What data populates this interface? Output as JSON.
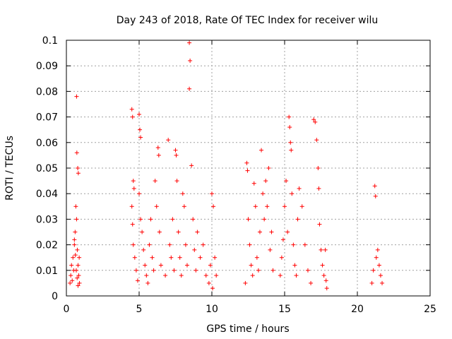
{
  "chart_data": {
    "type": "scatter",
    "title": "Day 243 of 2018, Rate Of TEC Index for receiver wilu",
    "xlabel": "GPS time / hours",
    "ylabel": "ROTI / TECUs",
    "xlim": [
      0,
      25
    ],
    "ylim": [
      0,
      0.1
    ],
    "x_ticks": [
      0,
      5,
      10,
      15,
      20,
      25
    ],
    "x_tick_labels": [
      "0",
      "5",
      "10",
      "15",
      "20",
      "25"
    ],
    "y_ticks": [
      0,
      0.01,
      0.02,
      0.03,
      0.04,
      0.05,
      0.06,
      0.07,
      0.08,
      0.09,
      0.1
    ],
    "y_tick_labels": [
      "0",
      "0.01",
      "0.02",
      "0.03",
      "0.04",
      "0.05",
      "0.06",
      "0.07",
      "0.08",
      "0.09",
      "0.1"
    ],
    "grid": true,
    "marker": "+",
    "color": "#ff0000",
    "series": [
      {
        "name": "ROTI",
        "points": [
          [
            0.25,
            0.005
          ],
          [
            0.3,
            0.008
          ],
          [
            0.35,
            0.012
          ],
          [
            0.4,
            0.006
          ],
          [
            0.45,
            0.015
          ],
          [
            0.5,
            0.01
          ],
          [
            0.55,
            0.02
          ],
          [
            0.6,
            0.025
          ],
          [
            0.65,
            0.035
          ],
          [
            0.7,
            0.03
          ],
          [
            0.75,
            0.018
          ],
          [
            0.8,
            0.012
          ],
          [
            0.85,
            0.008
          ],
          [
            0.9,
            0.005
          ],
          [
            0.7,
            0.078
          ],
          [
            0.72,
            0.056
          ],
          [
            0.78,
            0.05
          ],
          [
            0.82,
            0.048
          ],
          [
            0.55,
            0.022
          ],
          [
            0.62,
            0.016
          ],
          [
            0.68,
            0.01
          ],
          [
            0.74,
            0.007
          ],
          [
            0.8,
            0.004
          ],
          [
            0.88,
            0.015
          ],
          [
            4.5,
            0.073
          ],
          [
            4.55,
            0.07
          ],
          [
            4.6,
            0.045
          ],
          [
            4.65,
            0.042
          ],
          [
            4.5,
            0.035
          ],
          [
            4.55,
            0.028
          ],
          [
            4.6,
            0.02
          ],
          [
            4.7,
            0.015
          ],
          [
            4.8,
            0.01
          ],
          [
            4.9,
            0.006
          ],
          [
            5.0,
            0.071
          ],
          [
            5.05,
            0.065
          ],
          [
            5.1,
            0.062
          ],
          [
            5.0,
            0.04
          ],
          [
            5.1,
            0.03
          ],
          [
            5.2,
            0.025
          ],
          [
            5.3,
            0.018
          ],
          [
            5.4,
            0.012
          ],
          [
            5.5,
            0.008
          ],
          [
            5.6,
            0.005
          ],
          [
            5.7,
            0.02
          ],
          [
            5.8,
            0.03
          ],
          [
            5.9,
            0.015
          ],
          [
            6.0,
            0.01
          ],
          [
            6.1,
            0.045
          ],
          [
            6.2,
            0.035
          ],
          [
            6.3,
            0.058
          ],
          [
            6.35,
            0.055
          ],
          [
            6.4,
            0.025
          ],
          [
            6.5,
            0.012
          ],
          [
            6.8,
            0.008
          ],
          [
            7.0,
            0.061
          ],
          [
            7.1,
            0.02
          ],
          [
            7.2,
            0.015
          ],
          [
            7.3,
            0.03
          ],
          [
            7.4,
            0.01
          ],
          [
            7.5,
            0.057
          ],
          [
            7.55,
            0.055
          ],
          [
            7.6,
            0.045
          ],
          [
            7.7,
            0.025
          ],
          [
            7.8,
            0.015
          ],
          [
            7.9,
            0.008
          ],
          [
            8.0,
            0.04
          ],
          [
            8.1,
            0.035
          ],
          [
            8.2,
            0.02
          ],
          [
            8.3,
            0.012
          ],
          [
            8.45,
            0.099
          ],
          [
            8.5,
            0.092
          ],
          [
            8.45,
            0.081
          ],
          [
            8.6,
            0.051
          ],
          [
            8.7,
            0.03
          ],
          [
            8.8,
            0.018
          ],
          [
            8.9,
            0.01
          ],
          [
            9.0,
            0.025
          ],
          [
            9.2,
            0.015
          ],
          [
            9.4,
            0.02
          ],
          [
            9.6,
            0.008
          ],
          [
            9.8,
            0.005
          ],
          [
            9.9,
            0.012
          ],
          [
            10.0,
            0.04
          ],
          [
            10.1,
            0.035
          ],
          [
            10.2,
            0.015
          ],
          [
            10.3,
            0.008
          ],
          [
            10.05,
            0.003
          ],
          [
            12.3,
            0.005
          ],
          [
            12.4,
            0.052
          ],
          [
            12.45,
            0.049
          ],
          [
            12.5,
            0.03
          ],
          [
            12.6,
            0.02
          ],
          [
            12.7,
            0.012
          ],
          [
            12.8,
            0.008
          ],
          [
            12.9,
            0.044
          ],
          [
            13.0,
            0.035
          ],
          [
            13.1,
            0.015
          ],
          [
            13.2,
            0.01
          ],
          [
            13.3,
            0.025
          ],
          [
            13.4,
            0.057
          ],
          [
            13.5,
            0.04
          ],
          [
            13.6,
            0.03
          ],
          [
            13.7,
            0.045
          ],
          [
            13.8,
            0.035
          ],
          [
            13.9,
            0.05
          ],
          [
            14.0,
            0.018
          ],
          [
            14.1,
            0.025
          ],
          [
            14.2,
            0.01
          ],
          [
            14.7,
            0.008
          ],
          [
            14.8,
            0.015
          ],
          [
            14.9,
            0.022
          ],
          [
            15.0,
            0.035
          ],
          [
            15.1,
            0.045
          ],
          [
            15.2,
            0.025
          ],
          [
            15.3,
            0.07
          ],
          [
            15.35,
            0.066
          ],
          [
            15.4,
            0.06
          ],
          [
            15.45,
            0.057
          ],
          [
            15.5,
            0.04
          ],
          [
            15.6,
            0.02
          ],
          [
            15.7,
            0.012
          ],
          [
            15.8,
            0.008
          ],
          [
            15.9,
            0.03
          ],
          [
            16.0,
            0.042
          ],
          [
            16.2,
            0.035
          ],
          [
            16.4,
            0.02
          ],
          [
            16.6,
            0.01
          ],
          [
            16.8,
            0.005
          ],
          [
            17.0,
            0.069
          ],
          [
            17.1,
            0.068
          ],
          [
            17.2,
            0.061
          ],
          [
            17.3,
            0.05
          ],
          [
            17.35,
            0.042
          ],
          [
            17.4,
            0.028
          ],
          [
            17.5,
            0.018
          ],
          [
            17.6,
            0.012
          ],
          [
            17.7,
            0.008
          ],
          [
            17.8,
            0.018
          ],
          [
            17.85,
            0.006
          ],
          [
            17.9,
            0.003
          ],
          [
            21.0,
            0.005
          ],
          [
            21.1,
            0.01
          ],
          [
            21.2,
            0.043
          ],
          [
            21.25,
            0.039
          ],
          [
            21.3,
            0.015
          ],
          [
            21.4,
            0.018
          ],
          [
            21.5,
            0.012
          ],
          [
            21.6,
            0.008
          ],
          [
            21.7,
            0.005
          ]
        ]
      }
    ]
  }
}
